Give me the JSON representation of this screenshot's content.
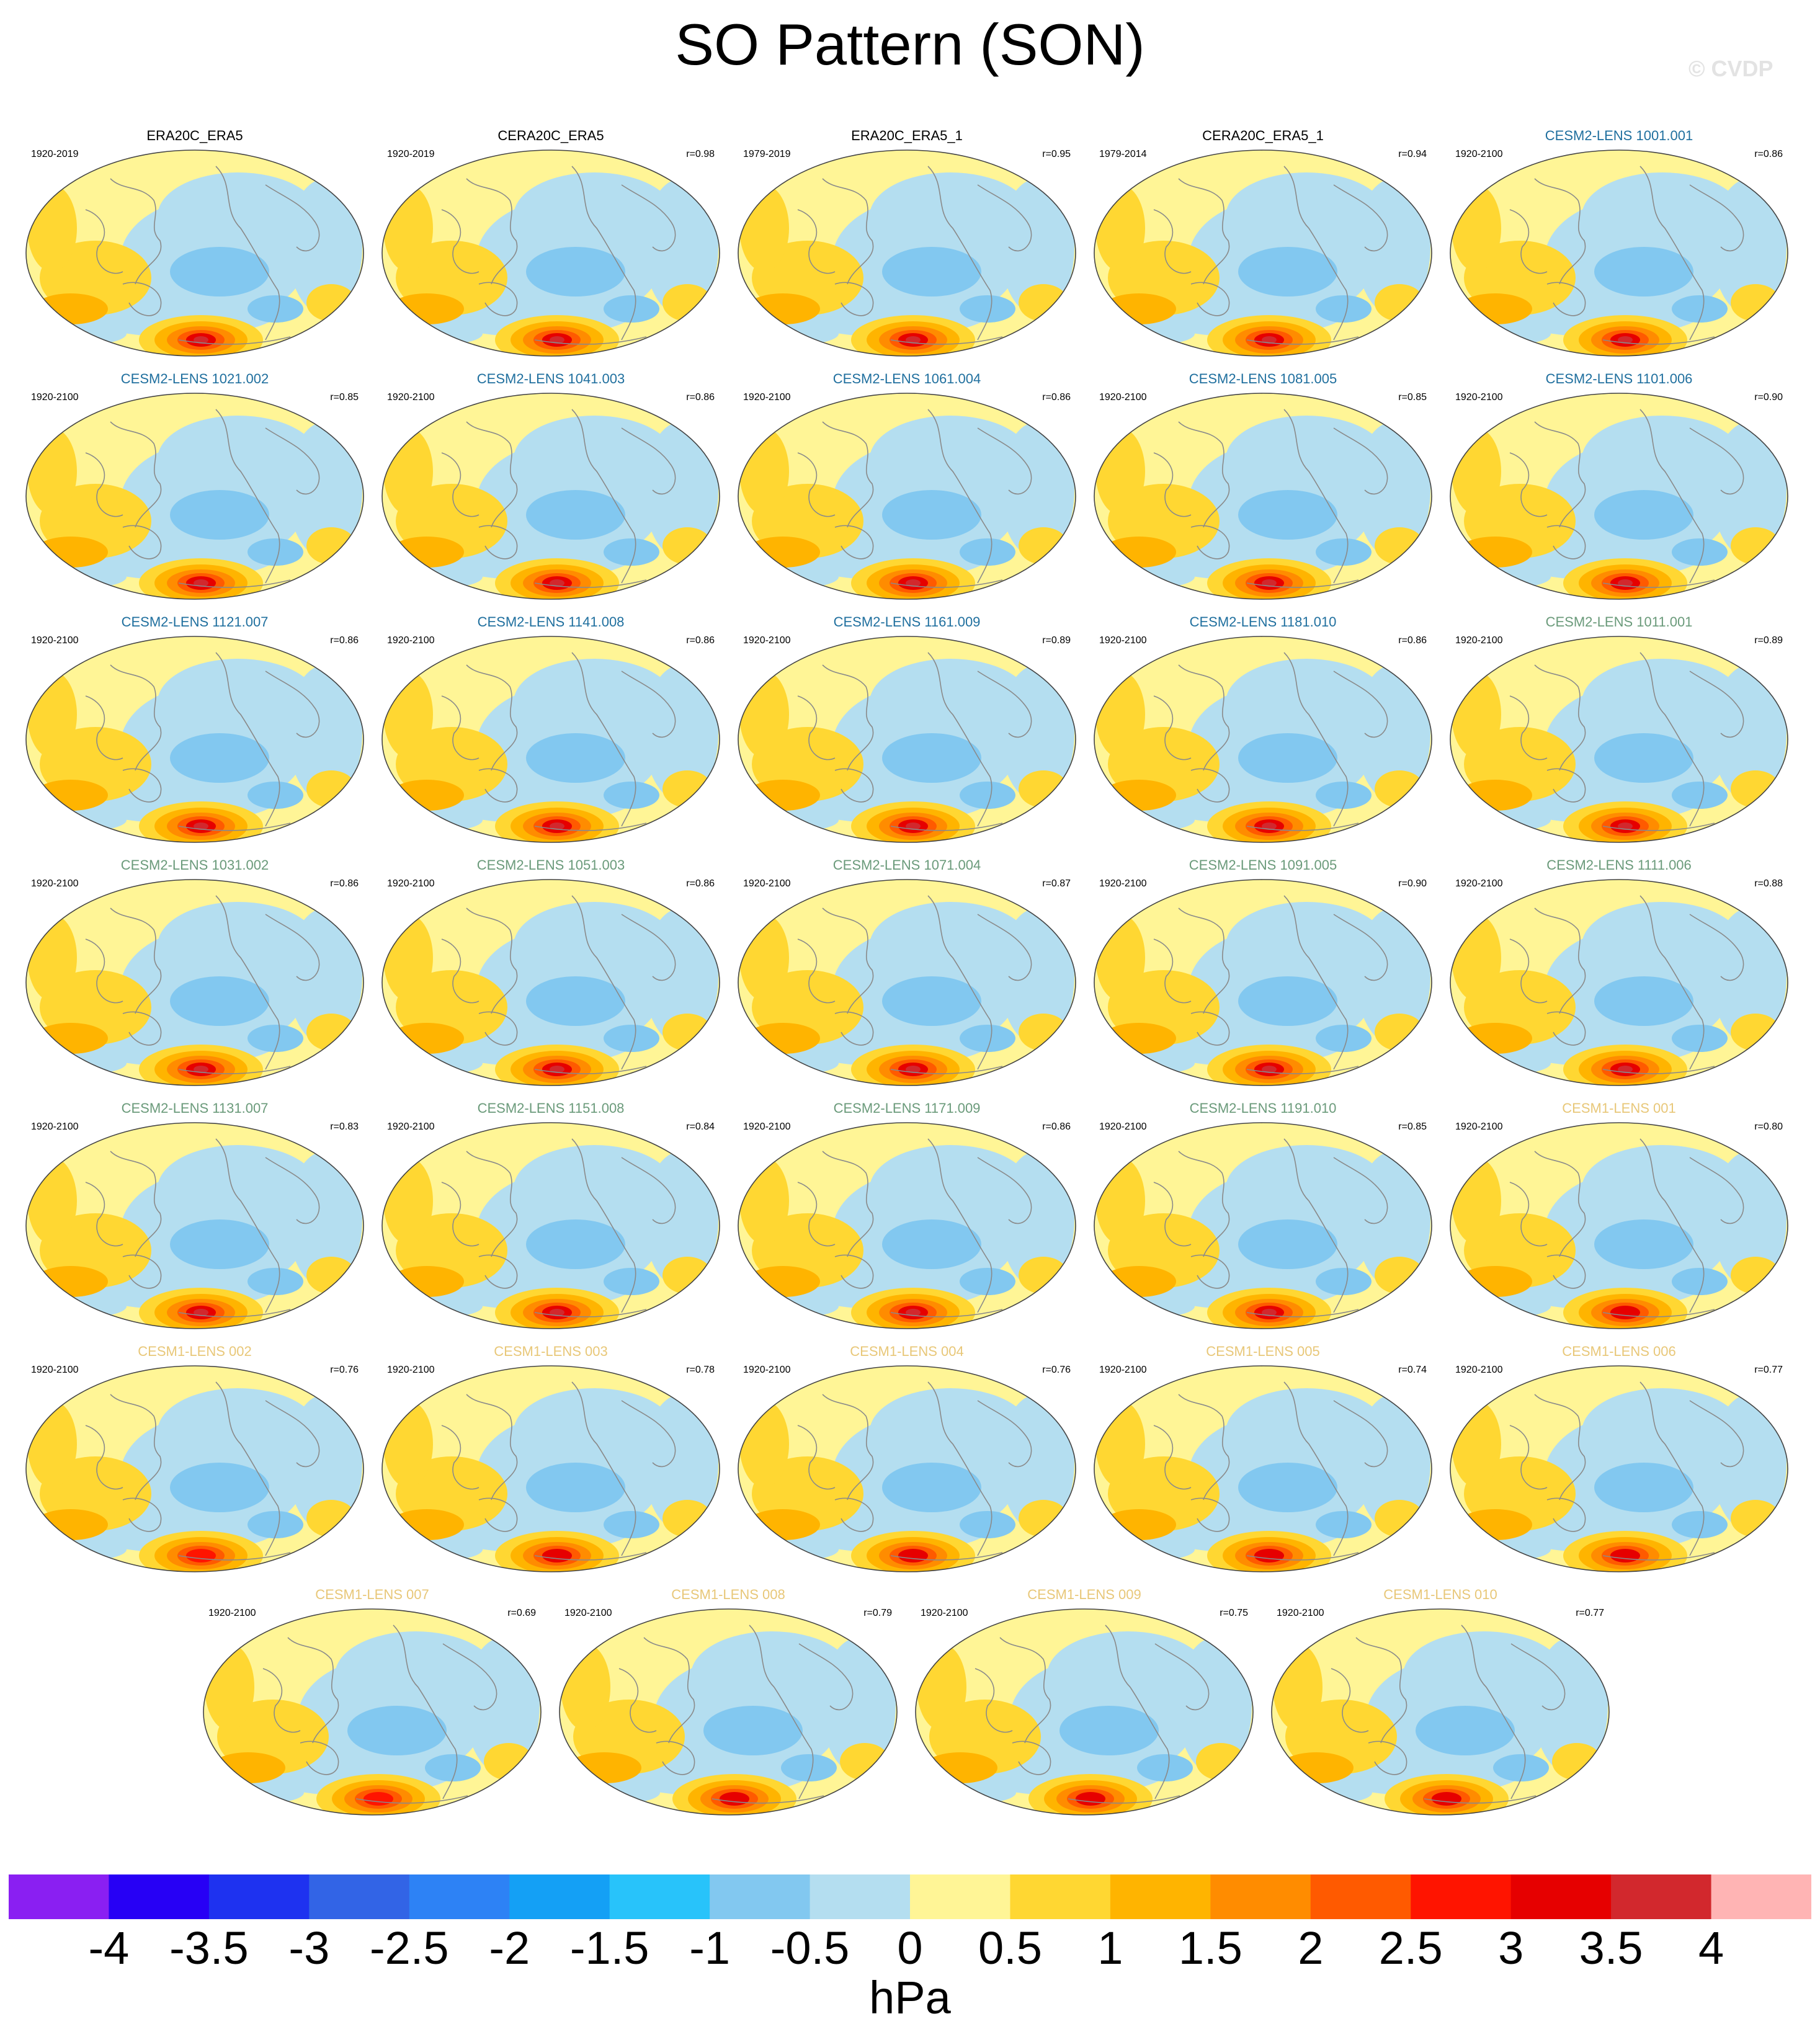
{
  "title": "SO Pattern (SON)",
  "watermark": "© CVDP",
  "colors": {
    "obs": "#000000",
    "cesm2_blue": "#1f6f9e",
    "cesm2_green": "#6a9a7a",
    "cesm1": "#e8c778",
    "coast": "#8a8a8a"
  },
  "panels": [
    {
      "name": "ERA20C_ERA5",
      "years": "1920-2019",
      "corr": "",
      "group": "obs",
      "center": 1.0
    },
    {
      "name": "CERA20C_ERA5",
      "years": "1920-2019",
      "corr": "r=0.98",
      "group": "obs",
      "center": 0.98
    },
    {
      "name": "ERA20C_ERA5_1",
      "years": "1979-2019",
      "corr": "r=0.95",
      "group": "obs",
      "center": 1.0
    },
    {
      "name": "CERA20C_ERA5_1",
      "years": "1979-2014",
      "corr": "r=0.94",
      "group": "obs",
      "center": 1.0
    },
    {
      "name": "CESM2-LENS 1001.001",
      "years": "1920-2100",
      "corr": "r=0.86",
      "group": "cesm2_blue",
      "center": 0.95
    },
    {
      "name": "CESM2-LENS 1021.002",
      "years": "1920-2100",
      "corr": "r=0.85",
      "group": "cesm2_blue",
      "center": 0.95
    },
    {
      "name": "CESM2-LENS 1041.003",
      "years": "1920-2100",
      "corr": "r=0.86",
      "group": "cesm2_blue",
      "center": 0.95
    },
    {
      "name": "CESM2-LENS 1061.004",
      "years": "1920-2100",
      "corr": "r=0.86",
      "group": "cesm2_blue",
      "center": 0.95
    },
    {
      "name": "CESM2-LENS 1081.005",
      "years": "1920-2100",
      "corr": "r=0.85",
      "group": "cesm2_blue",
      "center": 0.95
    },
    {
      "name": "CESM2-LENS 1101.006",
      "years": "1920-2100",
      "corr": "r=0.90",
      "group": "cesm2_blue",
      "center": 0.92
    },
    {
      "name": "CESM2-LENS 1121.007",
      "years": "1920-2100",
      "corr": "r=0.86",
      "group": "cesm2_blue",
      "center": 0.95
    },
    {
      "name": "CESM2-LENS 1141.008",
      "years": "1920-2100",
      "corr": "r=0.86",
      "group": "cesm2_blue",
      "center": 0.95
    },
    {
      "name": "CESM2-LENS 1161.009",
      "years": "1920-2100",
      "corr": "r=0.89",
      "group": "cesm2_blue",
      "center": 0.95
    },
    {
      "name": "CESM2-LENS 1181.010",
      "years": "1920-2100",
      "corr": "r=0.86",
      "group": "cesm2_blue",
      "center": 0.9
    },
    {
      "name": "CESM2-LENS 1011.001",
      "years": "1920-2100",
      "corr": "r=0.89",
      "group": "cesm2_green",
      "center": 0.95
    },
    {
      "name": "CESM2-LENS 1031.002",
      "years": "1920-2100",
      "corr": "r=0.86",
      "group": "cesm2_green",
      "center": 0.9
    },
    {
      "name": "CESM2-LENS 1051.003",
      "years": "1920-2100",
      "corr": "r=0.86",
      "group": "cesm2_green",
      "center": 0.9
    },
    {
      "name": "CESM2-LENS 1071.004",
      "years": "1920-2100",
      "corr": "r=0.87",
      "group": "cesm2_green",
      "center": 0.92
    },
    {
      "name": "CESM2-LENS 1091.005",
      "years": "1920-2100",
      "corr": "r=0.90",
      "group": "cesm2_green",
      "center": 0.98
    },
    {
      "name": "CESM2-LENS 1111.006",
      "years": "1920-2100",
      "corr": "r=0.88",
      "group": "cesm2_green",
      "center": 0.92
    },
    {
      "name": "CESM2-LENS 1131.007",
      "years": "1920-2100",
      "corr": "r=0.83",
      "group": "cesm2_green",
      "center": 0.95
    },
    {
      "name": "CESM2-LENS 1151.008",
      "years": "1920-2100",
      "corr": "r=0.84",
      "group": "cesm2_green",
      "center": 0.9
    },
    {
      "name": "CESM2-LENS 1171.009",
      "years": "1920-2100",
      "corr": "r=0.86",
      "group": "cesm2_green",
      "center": 0.9
    },
    {
      "name": "CESM2-LENS 1191.010",
      "years": "1920-2100",
      "corr": "r=0.85",
      "group": "cesm2_green",
      "center": 0.92
    },
    {
      "name": "CESM1-LENS 001",
      "years": "1920-2100",
      "corr": "r=0.80",
      "group": "cesm1",
      "center": 0.75
    },
    {
      "name": "CESM1-LENS 002",
      "years": "1920-2100",
      "corr": "r=0.76",
      "group": "cesm1",
      "center": 0.65
    },
    {
      "name": "CESM1-LENS 003",
      "years": "1920-2100",
      "corr": "r=0.78",
      "group": "cesm1",
      "center": 0.85
    },
    {
      "name": "CESM1-LENS 004",
      "years": "1920-2100",
      "corr": "r=0.76",
      "group": "cesm1",
      "center": 0.8
    },
    {
      "name": "CESM1-LENS 005",
      "years": "1920-2100",
      "corr": "r=0.74",
      "group": "cesm1",
      "center": 0.7
    },
    {
      "name": "CESM1-LENS 006",
      "years": "1920-2100",
      "corr": "r=0.77",
      "group": "cesm1",
      "center": 0.75
    },
    {
      "name": "CESM1-LENS 007",
      "years": "1920-2100",
      "corr": "r=0.69",
      "group": "cesm1",
      "center": 0.6
    },
    {
      "name": "CESM1-LENS 008",
      "years": "1920-2100",
      "corr": "r=0.79",
      "group": "cesm1",
      "center": 0.8
    },
    {
      "name": "CESM1-LENS 009",
      "years": "1920-2100",
      "corr": "r=0.75",
      "group": "cesm1",
      "center": 0.7
    },
    {
      "name": "CESM1-LENS 010",
      "years": "1920-2100",
      "corr": "r=0.77",
      "group": "cesm1",
      "center": 0.72
    }
  ],
  "colorbar": {
    "colors": [
      "#8a1ff2",
      "#2700f5",
      "#1e32f0",
      "#3264e6",
      "#2d82f5",
      "#14a0f5",
      "#28c3fa",
      "#82c8f0",
      "#b4def0",
      "#fff596",
      "#ffd732",
      "#ffb400",
      "#ff8c00",
      "#ff5a00",
      "#ff1400",
      "#e60000",
      "#d2282d",
      "#ffb4b4"
    ],
    "labels": [
      "-4",
      "-3.5",
      "-3",
      "-2.5",
      "-2",
      "-1.5",
      "-1",
      "-0.5",
      "0",
      "0.5",
      "1",
      "1.5",
      "2",
      "2.5",
      "3",
      "3.5",
      "4"
    ],
    "units": "hPa"
  }
}
